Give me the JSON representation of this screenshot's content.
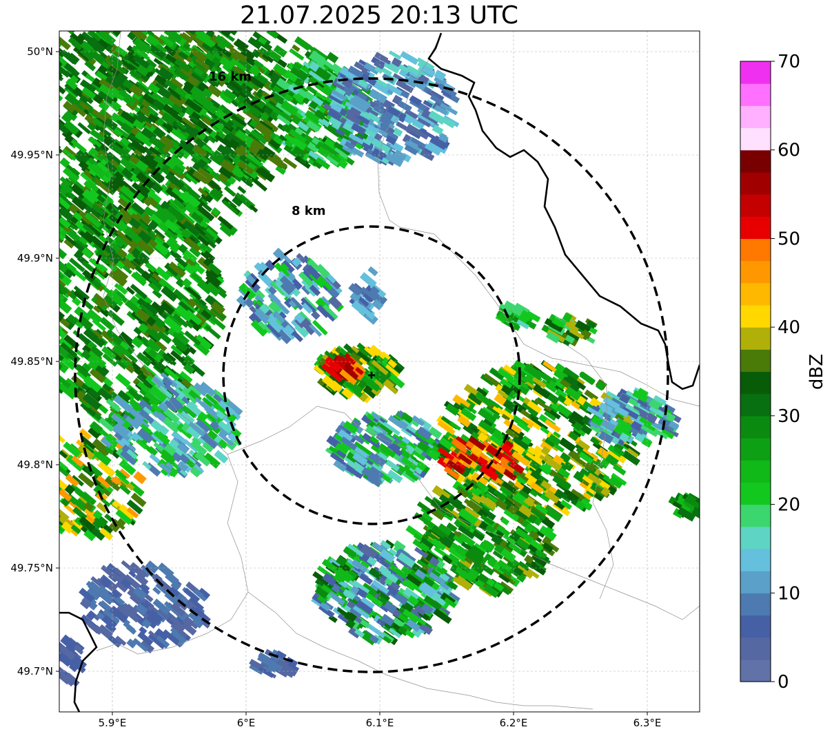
{
  "title": "21.07.2025 20:13 UTC",
  "colorbar": {
    "label": "dBZ",
    "ticks": [
      "0",
      "10",
      "20",
      "30",
      "40",
      "50",
      "60",
      "70"
    ],
    "colors": [
      "#6072a8",
      "#5568a2",
      "#4660a6",
      "#4d7ab0",
      "#5aa0c8",
      "#64c0dc",
      "#5ed4c4",
      "#3cd66e",
      "#12c81e",
      "#10b818",
      "#0ea014",
      "#0b8a10",
      "#087010",
      "#085c08",
      "#4a7a08",
      "#b0b008",
      "#ffd800",
      "#ffb800",
      "#ff9800",
      "#ff7800",
      "#e80000",
      "#c40000",
      "#a00000",
      "#780000",
      "#ffe0ff",
      "#ffb0ff",
      "#ff70ff",
      "#f030f0"
    ]
  },
  "axes": {
    "x_ticks": [
      "5.9°E",
      "6°E",
      "6.1°E",
      "6.2°E",
      "6.3°E"
    ],
    "y_ticks": [
      "50°N",
      "49.95°N",
      "49.9°N",
      "49.85°N",
      "49.8°N",
      "49.75°N",
      "49.7°N"
    ]
  },
  "rings": [
    {
      "label": "8 km",
      "radius_km": 8
    },
    {
      "label": "16 km",
      "radius_km": 16
    }
  ],
  "radar_site": {
    "lon": 6.095,
    "lat": 49.843
  }
}
